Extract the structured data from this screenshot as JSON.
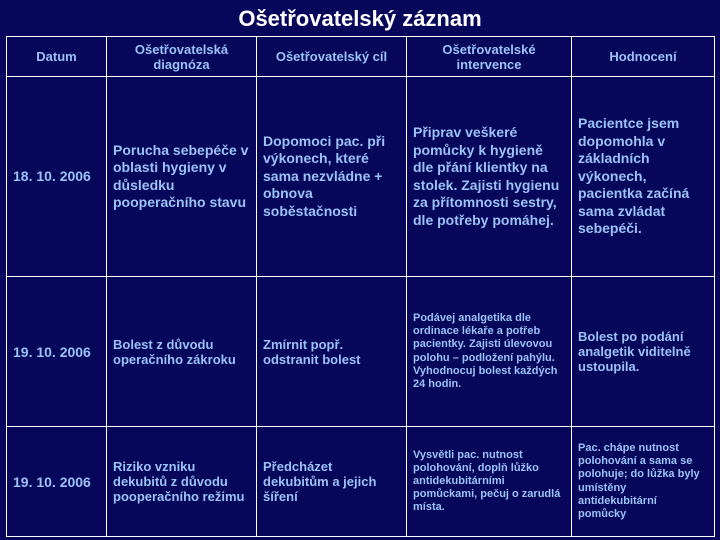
{
  "title": "Ošetřovatelský záznam",
  "headers": {
    "c1": "Datum",
    "c2": "Ošetřovatelská diagnóza",
    "c3": "Ošetřovatelský cíl",
    "c4": "Ošetřovatelské intervence",
    "c5": "Hodnocení"
  },
  "rows": [
    {
      "date": "18. 10. 2006",
      "diag": "Porucha sebepéče v oblasti hygieny v důsledku pooperačního stavu",
      "goal": "Dopomoci pac. při výkonech, které sama nezvládne + obnova soběstačnosti",
      "intv": "Připrav veškeré pomůcky k hygieně dle přání klientky na stolek.\nZajisti hygienu za přítomnosti sestry, dle potřeby pomáhej.",
      "eval": "Pacientce jsem dopomohla v základních výkonech, pacientka začíná sama zvládat sebepéči."
    },
    {
      "date": "19. 10. 2006",
      "diag": "Bolest z důvodu operačního zákroku",
      "goal": "Zmírnit popř. odstranit bolest",
      "intv": "Podávej analgetika dle ordinace lékaře a potřeb pacientky.\nZajisti úlevovou polohu – podložení pahýlu.\nVyhodnocuj bolest každých 24 hodin.",
      "eval": "Bolest po podání analgetik viditelně ustoupila."
    },
    {
      "date": "19. 10. 2006",
      "diag": "Riziko vzniku dekubitů z důvodu pooperačního režimu",
      "goal": "Předcházet dekubitům a jejich šíření",
      "intv": "Vysvětli pac. nutnost polohování, doplň lůžko antidekubitárními pomůckami, pečuj o zarudlá místa.",
      "eval": "Pac. chápe nutnost polohování a sama se polohuje; do lůžka byly umístěny antidekubitární pomůcky"
    }
  ],
  "colors": {
    "background": "#06065a",
    "text": "#9bc2f7",
    "title": "#ffffff",
    "border": "#ffffff"
  }
}
